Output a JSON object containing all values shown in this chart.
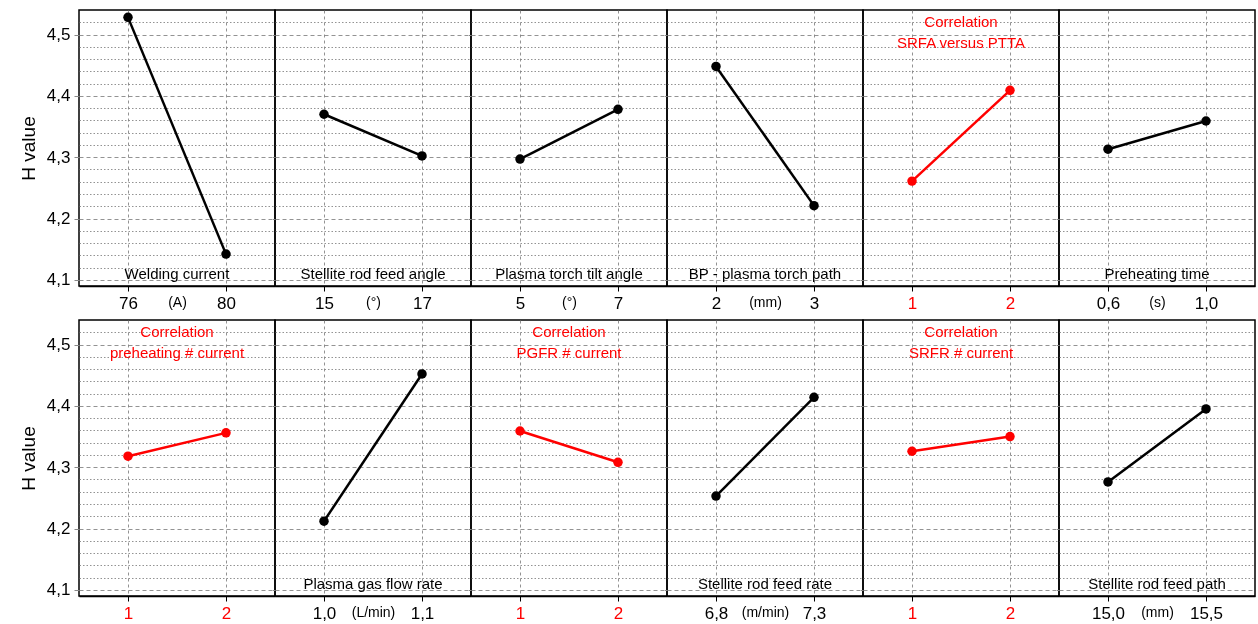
{
  "chart_data": [
    {
      "type": "line",
      "title": "Welding current",
      "xlabel": "(A)",
      "ylabel": "H value",
      "categories": [
        "76",
        "80"
      ],
      "series": [
        {
          "color": "#000000",
          "values": [
            4.528,
            4.142
          ]
        }
      ],
      "ylim": [
        4.09,
        4.54
      ],
      "yticks": [
        {
          "value": 4.1,
          "label": "4,1"
        },
        {
          "value": 4.12,
          "label": null
        },
        {
          "value": 4.14,
          "label": null
        },
        {
          "value": 4.16,
          "label": null
        },
        {
          "value": 4.18,
          "label": null
        },
        {
          "value": 4.2,
          "label": "4,2"
        },
        {
          "value": 4.22,
          "label": null
        },
        {
          "value": 4.24,
          "label": null
        },
        {
          "value": 4.26,
          "label": null
        },
        {
          "value": 4.28,
          "label": null
        },
        {
          "value": 4.3,
          "label": "4,3"
        },
        {
          "value": 4.32,
          "label": null
        },
        {
          "value": 4.34,
          "label": null
        },
        {
          "value": 4.36,
          "label": null
        },
        {
          "value": 4.38,
          "label": null
        },
        {
          "value": 4.4,
          "label": "4,4"
        },
        {
          "value": 4.42,
          "label": null
        },
        {
          "value": 4.44,
          "label": null
        },
        {
          "value": 4.46,
          "label": null
        },
        {
          "value": 4.48,
          "label": null
        },
        {
          "value": 4.5,
          "label": "4,5"
        },
        {
          "value": 4.52,
          "label": null
        }
      ],
      "grid": true,
      "marker": "circle"
    },
    {
      "type": "line",
      "title": "Stellite rod feed angle",
      "xlabel": "(°)",
      "categories": [
        "15",
        "17"
      ],
      "series": [
        {
          "color": "#000000",
          "values": [
            4.37,
            4.302
          ]
        }
      ],
      "ylim": [
        4.09,
        4.54
      ],
      "yticks": [
        4.1,
        {
          "value": 4.12,
          "label": null
        },
        {
          "value": 4.14,
          "label": null
        },
        {
          "value": 4.16,
          "label": null
        },
        {
          "value": 4.18,
          "label": null
        },
        4.2,
        {
          "value": 4.22,
          "label": null
        },
        {
          "value": 4.24,
          "label": null
        },
        {
          "value": 4.26,
          "label": null
        },
        {
          "value": 4.28,
          "label": null
        },
        4.3,
        {
          "value": 4.32,
          "label": null
        },
        {
          "value": 4.34,
          "label": null
        },
        {
          "value": 4.36,
          "label": null
        },
        {
          "value": 4.38,
          "label": null
        },
        4.4,
        {
          "value": 4.42,
          "label": null
        },
        {
          "value": 4.44,
          "label": null
        },
        {
          "value": 4.46,
          "label": null
        },
        {
          "value": 4.48,
          "label": null
        },
        4.5,
        {
          "value": 4.52,
          "label": null
        }
      ],
      "grid": true,
      "marker": "circle",
      "tick_labels": "x"
    },
    {
      "type": "line",
      "title": "Plasma torch tilt angle",
      "xlabel": "(°)",
      "categories": [
        "5",
        "7"
      ],
      "series": [
        {
          "color": "#000000",
          "values": [
            4.297,
            4.378
          ]
        }
      ],
      "ylim": [
        4.09,
        4.54
      ],
      "yticks": [
        4.1,
        {
          "value": 4.12,
          "label": null
        },
        {
          "value": 4.14,
          "label": null
        },
        {
          "value": 4.16,
          "label": null
        },
        {
          "value": 4.18,
          "label": null
        },
        4.2,
        {
          "value": 4.22,
          "label": null
        },
        {
          "value": 4.24,
          "label": null
        },
        {
          "value": 4.26,
          "label": null
        },
        {
          "value": 4.28,
          "label": null
        },
        4.3,
        {
          "value": 4.32,
          "label": null
        },
        {
          "value": 4.34,
          "label": null
        },
        {
          "value": 4.36,
          "label": null
        },
        {
          "value": 4.38,
          "label": null
        },
        4.4,
        {
          "value": 4.42,
          "label": null
        },
        {
          "value": 4.44,
          "label": null
        },
        {
          "value": 4.46,
          "label": null
        },
        {
          "value": 4.48,
          "label": null
        },
        4.5,
        {
          "value": 4.52,
          "label": null
        }
      ],
      "grid": true,
      "marker": "circle",
      "tick_labels": "x"
    },
    {
      "type": "line",
      "title": "BP - plasma torch path",
      "xlabel": "(mm)",
      "categories": [
        "2",
        "3"
      ],
      "series": [
        {
          "color": "#000000",
          "values": [
            4.448,
            4.221
          ]
        }
      ],
      "ylim": [
        4.09,
        4.54
      ],
      "yticks": [
        4.1,
        {
          "value": 4.12,
          "label": null
        },
        {
          "value": 4.14,
          "label": null
        },
        {
          "value": 4.16,
          "label": null
        },
        {
          "value": 4.18,
          "label": null
        },
        4.2,
        {
          "value": 4.22,
          "label": null
        },
        {
          "value": 4.24,
          "label": null
        },
        {
          "value": 4.26,
          "label": null
        },
        {
          "value": 4.28,
          "label": null
        },
        4.3,
        {
          "value": 4.32,
          "label": null
        },
        {
          "value": 4.34,
          "label": null
        },
        {
          "value": 4.36,
          "label": null
        },
        {
          "value": 4.38,
          "label": null
        },
        4.4,
        {
          "value": 4.42,
          "label": null
        },
        {
          "value": 4.44,
          "label": null
        },
        {
          "value": 4.46,
          "label": null
        },
        {
          "value": 4.48,
          "label": null
        },
        4.5,
        {
          "value": 4.52,
          "label": null
        }
      ],
      "grid": true,
      "marker": "circle",
      "tick_labels": "x"
    },
    {
      "type": "line",
      "title": "Correlation\nSRFA versus PTTA",
      "categories": [
        "1",
        "2"
      ],
      "series": [
        {
          "color": "#ff0000",
          "values": [
            4.261,
            4.409
          ]
        }
      ],
      "ylim": [
        4.09,
        4.54
      ],
      "yticks": [
        4.1,
        {
          "value": 4.12,
          "label": null
        },
        {
          "value": 4.14,
          "label": null
        },
        {
          "value": 4.16,
          "label": null
        },
        {
          "value": 4.18,
          "label": null
        },
        4.2,
        {
          "value": 4.22,
          "label": null
        },
        {
          "value": 4.24,
          "label": null
        },
        {
          "value": 4.26,
          "label": null
        },
        {
          "value": 4.28,
          "label": null
        },
        4.3,
        {
          "value": 4.32,
          "label": null
        },
        {
          "value": 4.34,
          "label": null
        },
        {
          "value": 4.36,
          "label": null
        },
        {
          "value": 4.38,
          "label": null
        },
        4.4,
        {
          "value": 4.42,
          "label": null
        },
        {
          "value": 4.44,
          "label": null
        },
        {
          "value": 4.46,
          "label": null
        },
        {
          "value": 4.48,
          "label": null
        },
        4.5,
        {
          "value": 4.52,
          "label": null
        }
      ],
      "grid": true,
      "marker": "circle",
      "tick_labels": "x"
    },
    {
      "type": "line",
      "title": "Preheating time",
      "xlabel": "(s)",
      "categories": [
        "0,6",
        "1,0"
      ],
      "series": [
        {
          "color": "#000000",
          "values": [
            4.313,
            4.359
          ]
        }
      ],
      "ylim": [
        4.09,
        4.54
      ],
      "yticks": [
        4.1,
        {
          "value": 4.12,
          "label": null
        },
        {
          "value": 4.14,
          "label": null
        },
        {
          "value": 4.16,
          "label": null
        },
        {
          "value": 4.18,
          "label": null
        },
        4.2,
        {
          "value": 4.22,
          "label": null
        },
        {
          "value": 4.24,
          "label": null
        },
        {
          "value": 4.26,
          "label": null
        },
        {
          "value": 4.28,
          "label": null
        },
        4.3,
        {
          "value": 4.32,
          "label": null
        },
        {
          "value": 4.34,
          "label": null
        },
        {
          "value": 4.36,
          "label": null
        },
        {
          "value": 4.38,
          "label": null
        },
        4.4,
        {
          "value": 4.42,
          "label": null
        },
        {
          "value": 4.44,
          "label": null
        },
        {
          "value": 4.46,
          "label": null
        },
        {
          "value": 4.48,
          "label": null
        },
        4.5,
        {
          "value": 4.52,
          "label": null
        }
      ],
      "grid": true,
      "marker": "circle",
      "tick_labels": "x"
    },
    {
      "type": "line",
      "title": "Correlation\npreheating # current",
      "ylabel": "H value",
      "categories": [
        "1",
        "2"
      ],
      "series": [
        {
          "color": "#ff0000",
          "values": [
            4.318,
            4.356
          ]
        }
      ],
      "ylim": [
        4.09,
        4.54
      ],
      "yticks": [
        {
          "value": 4.1,
          "label": "4,1"
        },
        {
          "value": 4.12,
          "label": null
        },
        {
          "value": 4.14,
          "label": null
        },
        {
          "value": 4.16,
          "label": null
        },
        {
          "value": 4.18,
          "label": null
        },
        {
          "value": 4.2,
          "label": "4,2"
        },
        {
          "value": 4.22,
          "label": null
        },
        {
          "value": 4.24,
          "label": null
        },
        {
          "value": 4.26,
          "label": null
        },
        {
          "value": 4.28,
          "label": null
        },
        {
          "value": 4.3,
          "label": "4,3"
        },
        {
          "value": 4.32,
          "label": null
        },
        {
          "value": 4.34,
          "label": null
        },
        {
          "value": 4.36,
          "label": null
        },
        {
          "value": 4.38,
          "label": null
        },
        {
          "value": 4.4,
          "label": "4,4"
        },
        {
          "value": 4.42,
          "label": null
        },
        {
          "value": 4.44,
          "label": null
        },
        {
          "value": 4.46,
          "label": null
        },
        {
          "value": 4.48,
          "label": null
        },
        {
          "value": 4.5,
          "label": "4,5"
        },
        {
          "value": 4.52,
          "label": null
        }
      ],
      "grid": true,
      "marker": "circle"
    },
    {
      "type": "line",
      "title": "Plasma gas flow rate",
      "xlabel": "(L/min)",
      "categories": [
        "1,0",
        "1,1"
      ],
      "series": [
        {
          "color": "#000000",
          "values": [
            4.212,
            4.452
          ]
        }
      ],
      "ylim": [
        4.09,
        4.54
      ],
      "yticks": [
        4.1,
        {
          "value": 4.12,
          "label": null
        },
        {
          "value": 4.14,
          "label": null
        },
        {
          "value": 4.16,
          "label": null
        },
        {
          "value": 4.18,
          "label": null
        },
        4.2,
        {
          "value": 4.22,
          "label": null
        },
        {
          "value": 4.24,
          "label": null
        },
        {
          "value": 4.26,
          "label": null
        },
        {
          "value": 4.28,
          "label": null
        },
        4.3,
        {
          "value": 4.32,
          "label": null
        },
        {
          "value": 4.34,
          "label": null
        },
        {
          "value": 4.36,
          "label": null
        },
        {
          "value": 4.38,
          "label": null
        },
        4.4,
        {
          "value": 4.42,
          "label": null
        },
        {
          "value": 4.44,
          "label": null
        },
        {
          "value": 4.46,
          "label": null
        },
        {
          "value": 4.48,
          "label": null
        },
        4.5,
        {
          "value": 4.52,
          "label": null
        }
      ],
      "grid": true,
      "marker": "circle",
      "tick_labels": "x"
    },
    {
      "type": "line",
      "title": "Correlation\nPGFR # current",
      "categories": [
        "1",
        "2"
      ],
      "series": [
        {
          "color": "#ff0000",
          "values": [
            4.359,
            4.308
          ]
        }
      ],
      "ylim": [
        4.09,
        4.54
      ],
      "yticks": [
        4.1,
        {
          "value": 4.12,
          "label": null
        },
        {
          "value": 4.14,
          "label": null
        },
        {
          "value": 4.16,
          "label": null
        },
        {
          "value": 4.18,
          "label": null
        },
        4.2,
        {
          "value": 4.22,
          "label": null
        },
        {
          "value": 4.24,
          "label": null
        },
        {
          "value": 4.26,
          "label": null
        },
        {
          "value": 4.28,
          "label": null
        },
        4.3,
        {
          "value": 4.32,
          "label": null
        },
        {
          "value": 4.34,
          "label": null
        },
        {
          "value": 4.36,
          "label": null
        },
        {
          "value": 4.38,
          "label": null
        },
        4.4,
        {
          "value": 4.42,
          "label": null
        },
        {
          "value": 4.44,
          "label": null
        },
        {
          "value": 4.46,
          "label": null
        },
        {
          "value": 4.48,
          "label": null
        },
        4.5,
        {
          "value": 4.52,
          "label": null
        }
      ],
      "grid": true,
      "marker": "circle",
      "tick_labels": "x"
    },
    {
      "type": "line",
      "title": "Stellite rod feed rate",
      "xlabel": "(m/min)",
      "categories": [
        "6,8",
        "7,3"
      ],
      "series": [
        {
          "color": "#000000",
          "values": [
            4.253,
            4.414
          ]
        }
      ],
      "ylim": [
        4.09,
        4.54
      ],
      "yticks": [
        4.1,
        {
          "value": 4.12,
          "label": null
        },
        {
          "value": 4.14,
          "label": null
        },
        {
          "value": 4.16,
          "label": null
        },
        {
          "value": 4.18,
          "label": null
        },
        4.2,
        {
          "value": 4.22,
          "label": null
        },
        {
          "value": 4.24,
          "label": null
        },
        {
          "value": 4.26,
          "label": null
        },
        {
          "value": 4.28,
          "label": null
        },
        4.3,
        {
          "value": 4.32,
          "label": null
        },
        {
          "value": 4.34,
          "label": null
        },
        {
          "value": 4.36,
          "label": null
        },
        {
          "value": 4.38,
          "label": null
        },
        4.4,
        {
          "value": 4.42,
          "label": null
        },
        {
          "value": 4.44,
          "label": null
        },
        {
          "value": 4.46,
          "label": null
        },
        {
          "value": 4.48,
          "label": null
        },
        4.5,
        {
          "value": 4.52,
          "label": null
        }
      ],
      "grid": true,
      "marker": "circle",
      "tick_labels": "x"
    },
    {
      "type": "line",
      "title": "Correlation\nSRFR # current",
      "categories": [
        "1",
        "2"
      ],
      "series": [
        {
          "color": "#ff0000",
          "values": [
            4.326,
            4.35
          ]
        }
      ],
      "ylim": [
        4.09,
        4.54
      ],
      "yticks": [
        4.1,
        {
          "value": 4.12,
          "label": null
        },
        {
          "value": 4.14,
          "label": null
        },
        {
          "value": 4.16,
          "label": null
        },
        {
          "value": 4.18,
          "label": null
        },
        4.2,
        {
          "value": 4.22,
          "label": null
        },
        {
          "value": 4.24,
          "label": null
        },
        {
          "value": 4.26,
          "label": null
        },
        {
          "value": 4.28,
          "label": null
        },
        4.3,
        {
          "value": 4.32,
          "label": null
        },
        {
          "value": 4.34,
          "label": null
        },
        {
          "value": 4.36,
          "label": null
        },
        {
          "value": 4.38,
          "label": null
        },
        4.4,
        {
          "value": 4.42,
          "label": null
        },
        {
          "value": 4.44,
          "label": null
        },
        {
          "value": 4.46,
          "label": null
        },
        {
          "value": 4.48,
          "label": null
        },
        4.5,
        {
          "value": 4.52,
          "label": null
        }
      ],
      "grid": true,
      "marker": "circle",
      "tick_labels": "x"
    },
    {
      "type": "line",
      "title": "Stellite rod feed path",
      "xlabel": "(mm)",
      "categories": [
        "15,0",
        "15,5"
      ],
      "series": [
        {
          "color": "#000000",
          "values": [
            4.276,
            4.395
          ]
        }
      ],
      "ylim": [
        4.09,
        4.54
      ],
      "yticks": [
        4.1,
        {
          "value": 4.12,
          "label": null
        },
        {
          "value": 4.14,
          "label": null
        },
        {
          "value": 4.16,
          "label": null
        },
        {
          "value": 4.18,
          "label": null
        },
        4.2,
        {
          "value": 4.22,
          "label": null
        },
        {
          "value": 4.24,
          "label": null
        },
        {
          "value": 4.26,
          "label": null
        },
        {
          "value": 4.28,
          "label": null
        },
        4.3,
        {
          "value": 4.32,
          "label": null
        },
        {
          "value": 4.34,
          "label": null
        },
        {
          "value": 4.36,
          "label": null
        },
        {
          "value": 4.38,
          "label": null
        },
        4.4,
        {
          "value": 4.42,
          "label": null
        },
        {
          "value": 4.44,
          "label": null
        },
        {
          "value": 4.46,
          "label": null
        },
        {
          "value": 4.48,
          "label": null
        },
        4.5,
        {
          "value": 4.52,
          "label": null
        }
      ],
      "grid": true,
      "marker": "circle",
      "tick_labels": "x"
    }
  ]
}
